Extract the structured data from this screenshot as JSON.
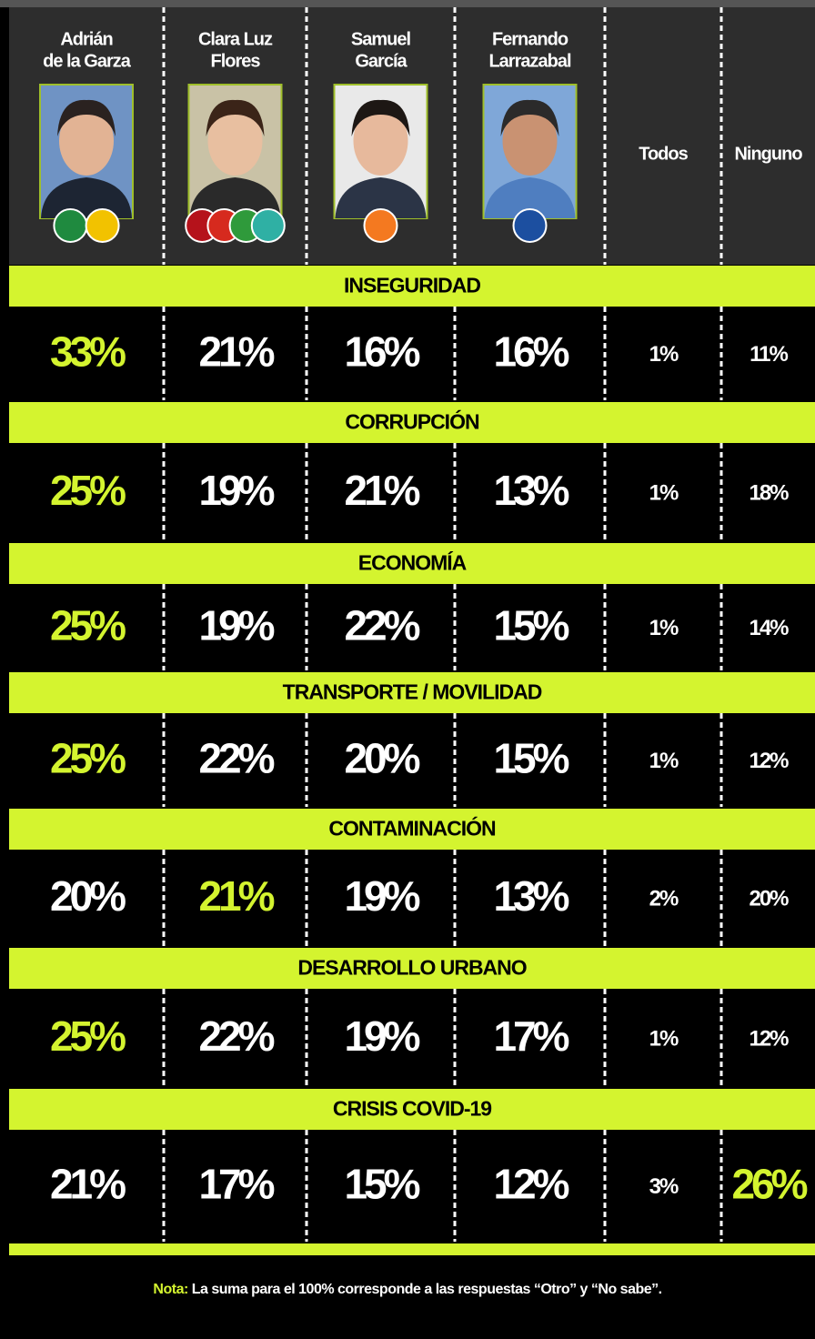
{
  "header": {
    "columns": [
      {
        "name": [
          "Adrián",
          "de la Garza"
        ]
      },
      {
        "name": [
          "Clara Luz",
          "Flores"
        ]
      },
      {
        "name": [
          "Samuel",
          "García"
        ]
      },
      {
        "name": [
          "Fernando",
          "Larrazabal"
        ]
      },
      {
        "name": [
          "Todos"
        ]
      },
      {
        "name": [
          "Ninguno"
        ]
      }
    ]
  },
  "sections": [
    {
      "title": "INSEGURIDAD",
      "values": [
        "33%",
        "21%",
        "16%",
        "16%",
        "1%",
        "11%"
      ]
    },
    {
      "title": "CORRUPCIÓN",
      "values": [
        "25%",
        "19%",
        "21%",
        "13%",
        "1%",
        "18%"
      ]
    },
    {
      "title": "ECONOMÍA",
      "values": [
        "25%",
        "19%",
        "22%",
        "15%",
        "1%",
        "14%"
      ]
    },
    {
      "title": "TRANSPORTE / MOVILIDAD",
      "values": [
        "25%",
        "22%",
        "20%",
        "15%",
        "1%",
        "12%"
      ]
    },
    {
      "title": "CONTAMINACIÓN",
      "values": [
        "20%",
        "21%",
        "19%",
        "13%",
        "2%",
        "20%"
      ]
    },
    {
      "title": "DESARROLLO URBANO",
      "values": [
        "25%",
        "22%",
        "19%",
        "17%",
        "1%",
        "12%"
      ]
    },
    {
      "title": "CRISIS COVID-19",
      "values": [
        "21%",
        "17%",
        "15%",
        "12%",
        "3%",
        "26%"
      ]
    }
  ],
  "note": {
    "label": "Nota:",
    "text": "La suma para el 100% corresponde a las respuestas “Otro” y “No sabe”."
  }
}
